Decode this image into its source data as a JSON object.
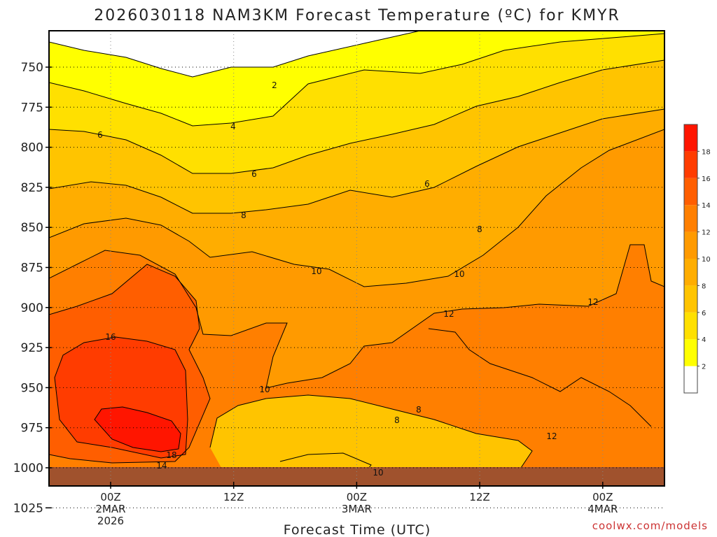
{
  "chart_data": {
    "type": "heatmap",
    "title": "2026030118 NAM3KM Forecast Temperature (ºC) for KMYR",
    "xlabel": "Forecast Time (UTC)",
    "ylabel": "",
    "credit": "coolwx.com/models",
    "y_ticks": [
      "750",
      "775",
      "800",
      "825",
      "850",
      "875",
      "900",
      "925",
      "950",
      "975",
      "1000",
      "1025"
    ],
    "x_ticks": [
      {
        "lines": [
          "00Z",
          "2MAR",
          "2026"
        ]
      },
      {
        "lines": [
          "12Z"
        ]
      },
      {
        "lines": [
          "00Z",
          "3MAR"
        ]
      },
      {
        "lines": [
          "12Z"
        ]
      },
      {
        "lines": [
          "00Z",
          "4MAR"
        ]
      }
    ],
    "contour_levels": [
      2,
      4,
      6,
      8,
      10,
      12,
      14,
      16,
      18
    ],
    "contour_labels": [
      "2",
      "4",
      "6",
      "6",
      "6",
      "8",
      "8",
      "10",
      "10",
      "12",
      "12",
      "16",
      "10",
      "8",
      "8",
      "10",
      "12",
      "18",
      "14"
    ],
    "colorbar": {
      "labels": [
        "2",
        "4",
        "6",
        "8",
        "10",
        "12",
        "14",
        "16",
        "18"
      ],
      "colors": [
        "#ffffff",
        "#ffff00",
        "#ffe000",
        "#ffc400",
        "#ffad00",
        "#ff9a00",
        "#ff7f00",
        "#ff5e00",
        "#ff3c00",
        "#ff1500"
      ]
    },
    "ground_color": "#a0522d"
  }
}
